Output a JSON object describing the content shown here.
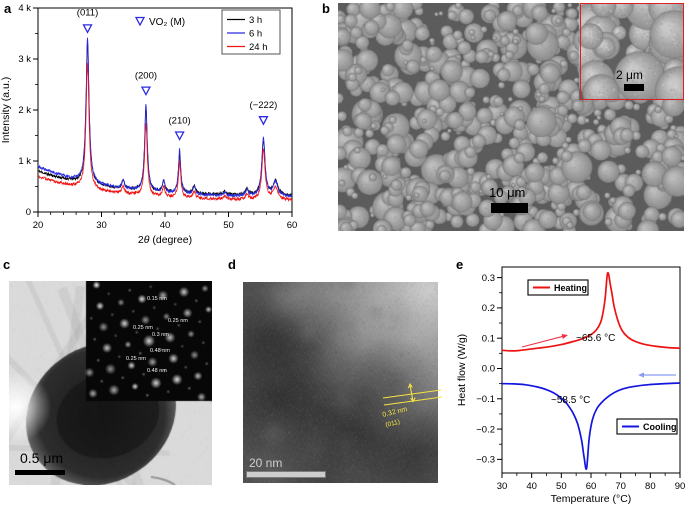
{
  "figure": {
    "panels": {
      "a": {
        "label": "a"
      },
      "b": {
        "label": "b",
        "scalebar": "10 μm",
        "inset_scalebar": "2 μm"
      },
      "c": {
        "label": "c",
        "scalebar": "0.5 μm",
        "saed_labels": [
          "0.15 nm",
          "0.25 nm",
          "0.25 nm",
          "0.3 nm",
          "0.48 nm",
          "0.25 nm",
          "0.48 nm"
        ]
      },
      "d": {
        "label": "d",
        "lattice_spacing": "0.32 nm",
        "lattice_plane": "(011)",
        "scalebar": "20 nm"
      },
      "e": {
        "label": "e"
      }
    }
  },
  "chart_data": [
    {
      "id": "xrd",
      "type": "line",
      "title": "",
      "xlabel": "2θ (degree)",
      "ylabel": "Intensity (a.u.)",
      "xlim": [
        20,
        60
      ],
      "ylim": [
        0,
        4000
      ],
      "xticks": [
        20,
        30,
        40,
        50,
        60
      ],
      "yticks": [
        0,
        1000,
        2000,
        3000,
        4000
      ],
      "ytick_labels": [
        "0",
        "1 k",
        "2 k",
        "3 k",
        "4 k"
      ],
      "grid": false,
      "legend_position": "top-right",
      "phase_note": {
        "text": "VO₂ (M)",
        "marker": "open-down-triangle",
        "marker_color": "#2a2ae0"
      },
      "peak_labels": [
        {
          "label": "(011)",
          "two_theta": 27.8,
          "marker_y": 3600,
          "label_y": 3850
        },
        {
          "label": "(200)",
          "two_theta": 37.0,
          "marker_y": 2380,
          "label_y": 2620
        },
        {
          "label": "(210)",
          "two_theta": 42.3,
          "marker_y": 1500,
          "label_y": 1740
        },
        {
          "label": "(−222)",
          "two_theta": 55.5,
          "marker_y": 1800,
          "label_y": 2040
        }
      ],
      "peak_positions": [
        27.8,
        33.4,
        37.0,
        39.8,
        42.3,
        44.6,
        49.4,
        52.9,
        55.5,
        57.4
      ],
      "peak_widths": [
        0.28,
        0.25,
        0.25,
        0.22,
        0.22,
        0.25,
        0.3,
        0.25,
        0.3,
        0.45
      ],
      "series": [
        {
          "name": "3 h",
          "color": "#000000",
          "baseline_start": 800,
          "baseline_end": 310,
          "peak_heights": [
            2800,
            160,
            1600,
            210,
            760,
            150,
            60,
            120,
            1060,
            270
          ]
        },
        {
          "name": "6 h",
          "color": "#2a2ae0",
          "baseline_start": 890,
          "baseline_end": 275,
          "peak_heights": [
            2850,
            170,
            1700,
            240,
            860,
            160,
            60,
            130,
            1170,
            290
          ]
        },
        {
          "name": "24 h",
          "color": "#f01414",
          "baseline_start": 700,
          "baseline_end": 215,
          "peak_heights": [
            2450,
            140,
            1400,
            190,
            700,
            140,
            50,
            110,
            980,
            250
          ]
        }
      ]
    },
    {
      "id": "dsc",
      "type": "line",
      "xlabel": "Temperature (°C)",
      "ylabel": "Heat flow (W/g)",
      "xlim": [
        30,
        90
      ],
      "ylim": [
        -0.345,
        0.335
      ],
      "xticks": [
        30,
        40,
        50,
        60,
        70,
        80,
        90
      ],
      "yticks": [
        -0.3,
        -0.2,
        -0.1,
        0.0,
        0.1,
        0.2,
        0.3
      ],
      "ytick_labels": [
        "−0.3",
        "−0.2",
        "−0.1",
        "0.0",
        "0.1",
        "0.2",
        "0.3"
      ],
      "grid": false,
      "series": [
        {
          "name": "Heating",
          "color": "#ee1111",
          "transition_label": "~65.6 °C",
          "points": [
            [
              30,
              0.06
            ],
            [
              34,
              0.058
            ],
            [
              38,
              0.062
            ],
            [
              42,
              0.067
            ],
            [
              46,
              0.072
            ],
            [
              50,
              0.079
            ],
            [
              54,
              0.089
            ],
            [
              57,
              0.098
            ],
            [
              60,
              0.112
            ],
            [
              62,
              0.13
            ],
            [
              63.5,
              0.16
            ],
            [
              64.7,
              0.225
            ],
            [
              65.6,
              0.315
            ],
            [
              66.6,
              0.272
            ],
            [
              67.8,
              0.205
            ],
            [
              69,
              0.16
            ],
            [
              70.5,
              0.125
            ],
            [
              72.5,
              0.103
            ],
            [
              75,
              0.089
            ],
            [
              78,
              0.08
            ],
            [
              82,
              0.073
            ],
            [
              86,
              0.069
            ],
            [
              90,
              0.067
            ]
          ]
        },
        {
          "name": "Cooling",
          "color": "#1515e0",
          "transition_label": "~58.5 °C",
          "points": [
            [
              90,
              -0.048
            ],
            [
              85,
              -0.05
            ],
            [
              80,
              -0.053
            ],
            [
              76,
              -0.057
            ],
            [
              72,
              -0.064
            ],
            [
              69,
              -0.074
            ],
            [
              66.5,
              -0.088
            ],
            [
              64,
              -0.108
            ],
            [
              62,
              -0.132
            ],
            [
              60.5,
              -0.168
            ],
            [
              59.4,
              -0.23
            ],
            [
              58.5,
              -0.33
            ],
            [
              57.7,
              -0.295
            ],
            [
              56.8,
              -0.235
            ],
            [
              55.5,
              -0.183
            ],
            [
              54,
              -0.148
            ],
            [
              52,
              -0.118
            ],
            [
              50,
              -0.098
            ],
            [
              47.5,
              -0.081
            ],
            [
              45,
              -0.07
            ],
            [
              42,
              -0.061
            ],
            [
              38,
              -0.054
            ],
            [
              34,
              -0.051
            ],
            [
              30,
              -0.05
            ]
          ]
        }
      ],
      "legend": [
        {
          "label": "Heating",
          "color": "#ee1111",
          "position": "top-left"
        },
        {
          "label": "Cooling",
          "color": "#1515e0",
          "position": "bottom-right"
        }
      ],
      "arrows": [
        {
          "direction": "right",
          "color": "#ee3344",
          "meaning": "heating-direction"
        },
        {
          "direction": "left",
          "color": "#8c9cf5",
          "meaning": "cooling-direction"
        }
      ]
    }
  ]
}
